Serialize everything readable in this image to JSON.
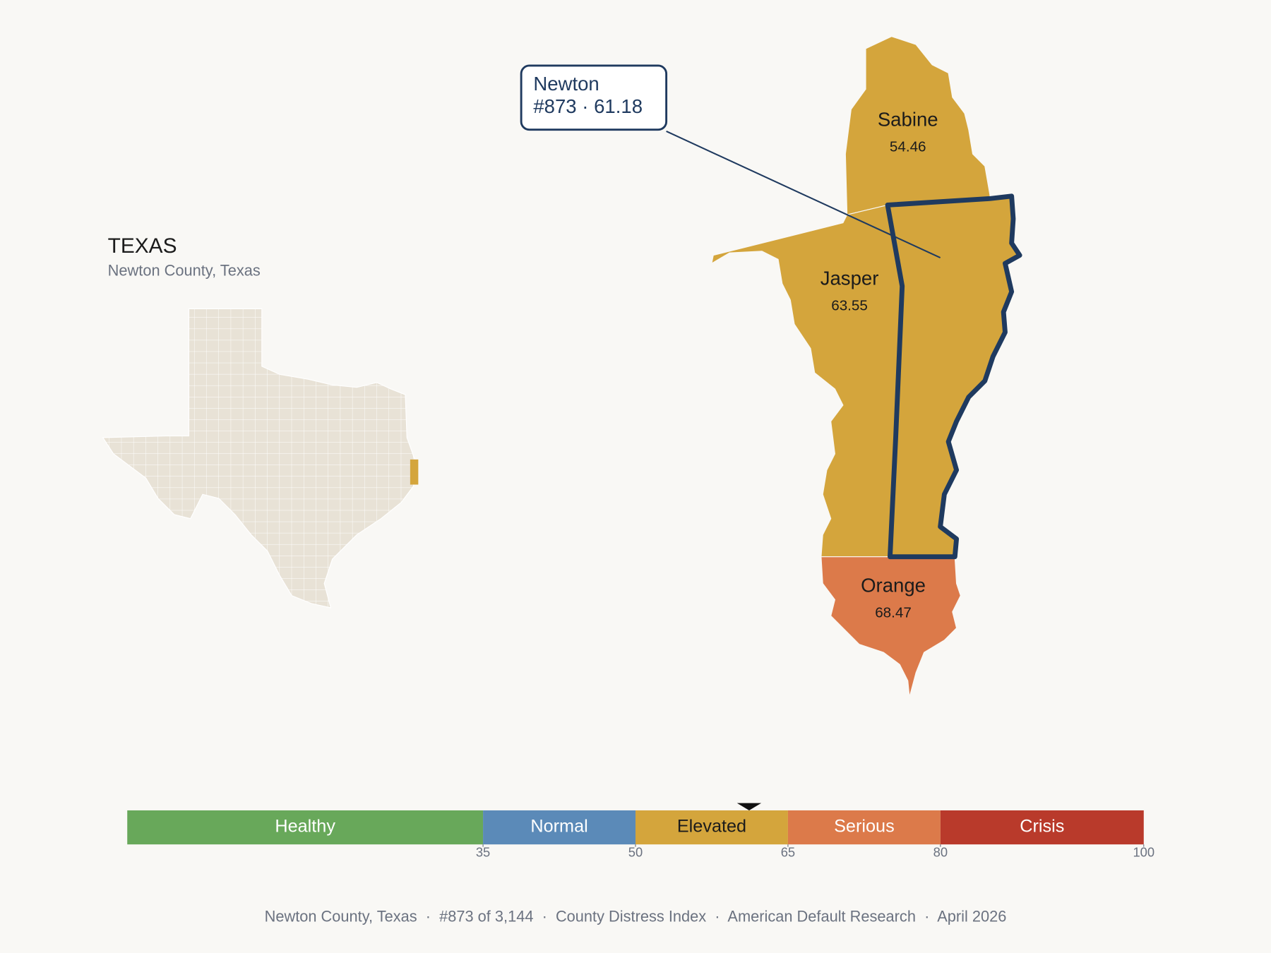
{
  "header": {
    "title": "TEXAS",
    "subtitle": "Newton County, Texas"
  },
  "selected": {
    "name": "Newton",
    "detail": "#873 · 61.18",
    "score": 61.18
  },
  "counties": [
    {
      "name": "Sabine",
      "value": 54.46
    },
    {
      "name": "Jasper",
      "value": 63.55
    },
    {
      "name": "Orange",
      "value": 68.47
    }
  ],
  "scale": {
    "range": [
      0,
      100
    ],
    "ticks": [
      35,
      50,
      65,
      80,
      100
    ],
    "bands": [
      {
        "label": "Healthy",
        "color": "#68a85a",
        "label_color": "#ffffff"
      },
      {
        "label": "Normal",
        "color": "#5b8ab8",
        "label_color": "#ffffff"
      },
      {
        "label": "Elevated",
        "color": "#d4a53c",
        "label_color": "#1b1b1b"
      },
      {
        "label": "Serious",
        "color": "#dc7a4a",
        "label_color": "#ffffff"
      },
      {
        "label": "Crisis",
        "color": "#b93a2b",
        "label_color": "#ffffff"
      }
    ]
  },
  "footer": "Newton County, Texas  ·  #873 of 3,144  ·  County Distress Index  ·  American Default Research  ·  April 2026"
}
